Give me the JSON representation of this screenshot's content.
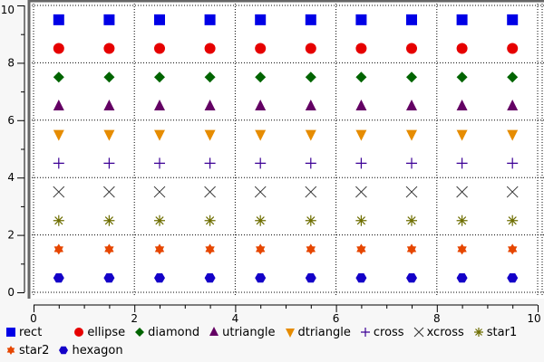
{
  "chart_data": {
    "type": "scatter",
    "xlim": [
      0,
      10
    ],
    "ylim": [
      0,
      10
    ],
    "x_ticks": [
      "0",
      "2",
      "4",
      "6",
      "8",
      "10"
    ],
    "y_ticks": [
      "0",
      "2",
      "4",
      "6",
      "8",
      "10"
    ],
    "grid": true,
    "legend_position": "bottom",
    "x": [
      0.5,
      1.5,
      2.5,
      3.5,
      4.5,
      5.5,
      6.5,
      7.5,
      8.5,
      9.5
    ],
    "series": [
      {
        "name": "rect",
        "marker": "rect",
        "y": 9.5,
        "color": "#0000e6"
      },
      {
        "name": "ellipse",
        "marker": "ellipse",
        "y": 8.5,
        "color": "#e60000"
      },
      {
        "name": "diamond",
        "marker": "diamond",
        "y": 7.5,
        "color": "#006400"
      },
      {
        "name": "utriangle",
        "marker": "utriangle",
        "y": 6.5,
        "color": "#640064"
      },
      {
        "name": "dtriangle",
        "marker": "dtriangle",
        "y": 5.5,
        "color": "#e68c00"
      },
      {
        "name": "cross",
        "marker": "cross",
        "y": 4.5,
        "color": "#3c0096"
      },
      {
        "name": "xcross",
        "marker": "xcross",
        "y": 3.5,
        "color": "#323232"
      },
      {
        "name": "star1",
        "marker": "star1",
        "y": 2.5,
        "color": "#6e6e00"
      },
      {
        "name": "star2",
        "marker": "star2",
        "y": 1.5,
        "color": "#e64600"
      },
      {
        "name": "hexagon",
        "marker": "hexagon",
        "y": 0.5,
        "color": "#1400c8"
      }
    ]
  }
}
